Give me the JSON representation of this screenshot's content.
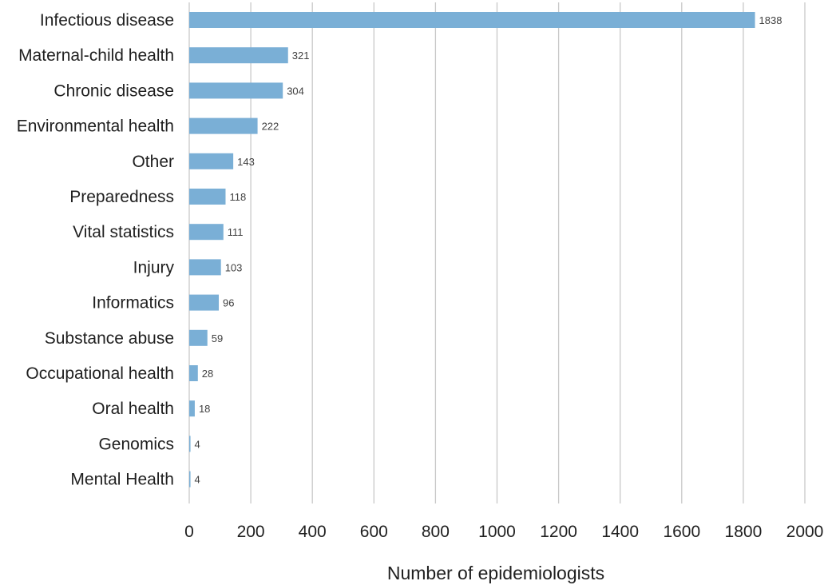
{
  "chart_data": {
    "type": "bar",
    "orientation": "horizontal",
    "categories": [
      "Infectious disease",
      "Maternal-child health",
      "Chronic disease",
      "Environmental health",
      "Other",
      "Preparedness",
      "Vital statistics",
      "Injury",
      "Informatics",
      "Substance abuse",
      "Occupational health",
      "Oral health",
      "Genomics",
      "Mental Health"
    ],
    "values": [
      1838,
      321,
      304,
      222,
      143,
      118,
      111,
      103,
      96,
      59,
      28,
      18,
      4,
      4
    ],
    "value_labels": [
      "1838",
      "321",
      "304",
      "222",
      "143",
      "118",
      "111",
      "103",
      "96",
      "59",
      "28",
      "18",
      "4",
      "4"
    ],
    "title": "",
    "xlabel": "Number of epidemiologists",
    "ylabel": "",
    "xlim": [
      0,
      2000
    ],
    "x_ticks": [
      "0",
      "200",
      "400",
      "600",
      "800",
      "1000",
      "1200",
      "1400",
      "1600",
      "1800",
      "2000"
    ],
    "grid": "vertical",
    "bar_color": "#7aafd6"
  }
}
